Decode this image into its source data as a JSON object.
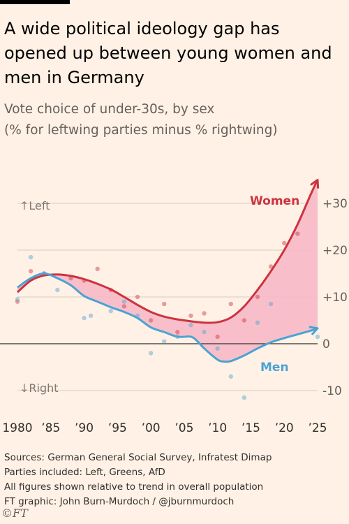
{
  "header": {
    "title": "A wide political ideology gap has opened up between young women and men in Germany",
    "subtitle_line1": "Vote choice of under-30s, by sex",
    "subtitle_line2": "(% for leftwing parties minus % rightwing)"
  },
  "footer": {
    "line1": "Sources: German General Social Survey, Infratest Dimap",
    "line2": "Parties included: Left, Greens, AfD",
    "line3": "All figures shown relative to trend in overall population",
    "line4": "FT graphic: John Burn-Murdoch / @jburnmurdoch",
    "logo": "©FT"
  },
  "chart_data": {
    "type": "line",
    "title": "A wide political ideology gap has opened up between young women and men in Germany",
    "subtitle": "Vote choice of under-30s, by sex (% for leftwing parties minus % rightwing)",
    "direction_labels": {
      "up": "Left",
      "down": "Right"
    },
    "xlim": [
      1980,
      2025
    ],
    "ylim": [
      -12,
      35
    ],
    "x_ticks": [
      1980,
      1985,
      1990,
      1995,
      2000,
      2005,
      2010,
      2015,
      2020,
      2025
    ],
    "x_tick_labels": [
      "1980",
      "’85",
      "’90",
      "’95",
      "’00",
      "’05",
      "’10",
      "’15",
      "’20",
      "’25"
    ],
    "y_ticks": [
      30,
      20,
      10,
      0,
      -10
    ],
    "y_tick_labels": [
      "+30",
      "+20",
      "+10",
      "0",
      "-10"
    ],
    "grid": true,
    "colors": {
      "women": "#cc333f",
      "men": "#4aa3d3",
      "gap_fill": "#f7b6c6",
      "zero_line": "#33302e",
      "grid": "#d9ccc3"
    },
    "series": [
      {
        "name": "Women",
        "trend": [
          [
            1980,
            11
          ],
          [
            1982,
            13.5
          ],
          [
            1984,
            14.6
          ],
          [
            1986,
            14.8
          ],
          [
            1988,
            14.5
          ],
          [
            1990,
            13.8
          ],
          [
            1992,
            12.8
          ],
          [
            1994,
            11.6
          ],
          [
            1996,
            10
          ],
          [
            1998,
            8.3
          ],
          [
            2000,
            6.8
          ],
          [
            2002,
            5.8
          ],
          [
            2004,
            5.2
          ],
          [
            2006,
            4.8
          ],
          [
            2008,
            4.5
          ],
          [
            2010,
            4.6
          ],
          [
            2012,
            5.6
          ],
          [
            2014,
            8
          ],
          [
            2016,
            11.5
          ],
          [
            2018,
            15.5
          ],
          [
            2020,
            20
          ],
          [
            2022,
            25.5
          ],
          [
            2024,
            32
          ],
          [
            2025,
            35
          ]
        ],
        "points": [
          [
            1980,
            9
          ],
          [
            1982,
            15.5
          ],
          [
            1984,
            15
          ],
          [
            1988,
            14
          ],
          [
            1990,
            13.5
          ],
          [
            1992,
            16
          ],
          [
            1994,
            11.5
          ],
          [
            1996,
            8
          ],
          [
            1998,
            10
          ],
          [
            2000,
            5
          ],
          [
            2002,
            8.5
          ],
          [
            2004,
            2.5
          ],
          [
            2006,
            6
          ],
          [
            2008,
            6.5
          ],
          [
            2010,
            1.5
          ],
          [
            2012,
            8.5
          ],
          [
            2014,
            5
          ],
          [
            2016,
            10
          ],
          [
            2018,
            16.5
          ],
          [
            2020,
            21.5
          ],
          [
            2022,
            23.5
          ]
        ]
      },
      {
        "name": "Men",
        "trend": [
          [
            1980,
            12
          ],
          [
            1982,
            14
          ],
          [
            1984,
            15
          ],
          [
            1986,
            14
          ],
          [
            1988,
            12.5
          ],
          [
            1990,
            10.2
          ],
          [
            1992,
            9
          ],
          [
            1994,
            7.8
          ],
          [
            1996,
            6.8
          ],
          [
            1998,
            5.5
          ],
          [
            2000,
            3.5
          ],
          [
            2002,
            2.5
          ],
          [
            2004,
            1.5
          ],
          [
            2006,
            1.5
          ],
          [
            2007,
            0.5
          ],
          [
            2008,
            -1
          ],
          [
            2010,
            -3.4
          ],
          [
            2011,
            -3.8
          ],
          [
            2012,
            -3.7
          ],
          [
            2014,
            -2.5
          ],
          [
            2016,
            -1
          ],
          [
            2018,
            0.3
          ],
          [
            2020,
            1.2
          ],
          [
            2022,
            2
          ],
          [
            2024,
            2.8
          ],
          [
            2025,
            3.3
          ]
        ],
        "points": [
          [
            1980,
            9.5
          ],
          [
            1982,
            18.5
          ],
          [
            1984,
            15
          ],
          [
            1986,
            11.5
          ],
          [
            1990,
            5.5
          ],
          [
            1991,
            6
          ],
          [
            1994,
            7
          ],
          [
            1996,
            9
          ],
          [
            1998,
            6
          ],
          [
            2000,
            -2
          ],
          [
            2002,
            0.5
          ],
          [
            2004,
            1.5
          ],
          [
            2006,
            4
          ],
          [
            2008,
            2.5
          ],
          [
            2010,
            -1
          ],
          [
            2012,
            -7
          ],
          [
            2014,
            -11.5
          ],
          [
            2016,
            4.5
          ],
          [
            2018,
            8.5
          ],
          [
            2025,
            1.5
          ]
        ]
      }
    ]
  }
}
